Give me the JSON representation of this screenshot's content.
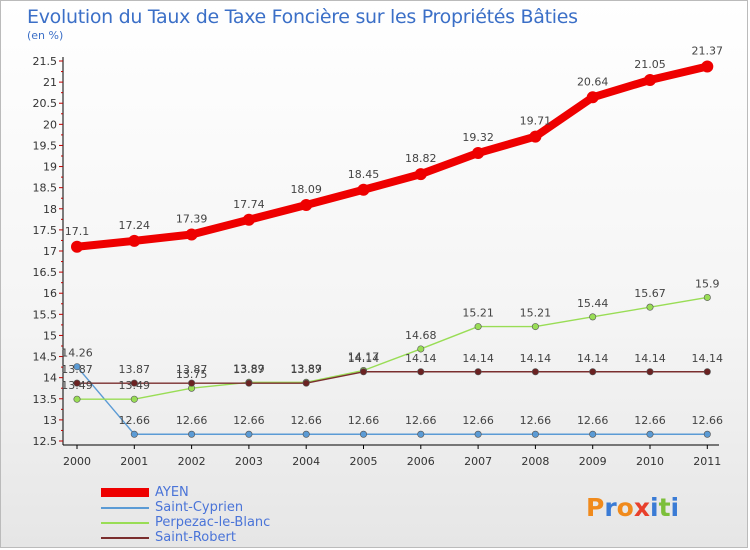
{
  "header": {
    "title": "Evolution du Taux de Taxe Foncière sur les Propriétés Bâties",
    "unit": "(en %)"
  },
  "logo": {
    "text": "Proxiti",
    "colors": [
      "#f08a1c",
      "#3a7bd5",
      "#f08a1c",
      "#e8402c",
      "#3a7bd5",
      "#7cbf3a",
      "#3a7bd5"
    ]
  },
  "chart_data": {
    "type": "line",
    "x": [
      "2000",
      "2001",
      "2002",
      "2003",
      "2004",
      "2005",
      "2006",
      "2007",
      "2008",
      "2009",
      "2010",
      "2011"
    ],
    "ylim": [
      12.5,
      21.5
    ],
    "yticks": [
      "12.5",
      "13",
      "13.5",
      "14",
      "14.5",
      "15",
      "15.5",
      "16",
      "16.5",
      "17",
      "17.5",
      "18",
      "18.5",
      "19",
      "19.5",
      "20",
      "20.5",
      "21",
      "21.5"
    ],
    "grid": false,
    "legend": "bottom-left",
    "series": [
      {
        "name": "AYEN",
        "color": "#ee0000",
        "values": [
          17.1,
          17.24,
          17.39,
          17.74,
          18.09,
          18.45,
          18.82,
          19.32,
          19.71,
          20.64,
          21.05,
          21.37
        ],
        "labels": [
          "17.1",
          "17.24",
          "17.39",
          "17.74",
          "18.09",
          "18.45",
          "18.82",
          "19.32",
          "19.71",
          "20.64",
          "21.05",
          "21.37"
        ]
      },
      {
        "name": "Saint-Cyprien",
        "color": "#5b9bd5",
        "values": [
          14.26,
          12.66,
          12.66,
          12.66,
          12.66,
          12.66,
          12.66,
          12.66,
          12.66,
          12.66,
          12.66,
          12.66
        ],
        "labels": [
          "14.26",
          "12.66",
          "12.66",
          "12.66",
          "12.66",
          "12.66",
          "12.66",
          "12.66",
          "12.66",
          "12.66",
          "12.66",
          "12.66"
        ]
      },
      {
        "name": "Perpezac-le-Blanc",
        "color": "#99dd55",
        "values": [
          13.49,
          13.49,
          13.75,
          13.89,
          13.89,
          14.17,
          14.68,
          15.21,
          15.21,
          15.44,
          15.67,
          15.9
        ],
        "labels": [
          "13.49",
          "13.49",
          "13.75",
          "13.89",
          "13.89",
          "14.17",
          "14.68",
          "15.21",
          "15.21",
          "15.44",
          "15.67",
          "15.9"
        ]
      },
      {
        "name": "Saint-Robert",
        "color": "#7a2e2e",
        "values": [
          13.87,
          13.87,
          13.87,
          13.87,
          13.87,
          14.14,
          14.14,
          14.14,
          14.14,
          14.14,
          14.14,
          14.14
        ],
        "labels": [
          "13.87",
          "13.87",
          "13.87",
          "13.87",
          "13.87",
          "14.14",
          "14.14",
          "14.14",
          "14.14",
          "14.14",
          "14.14",
          "14.14"
        ]
      }
    ]
  }
}
